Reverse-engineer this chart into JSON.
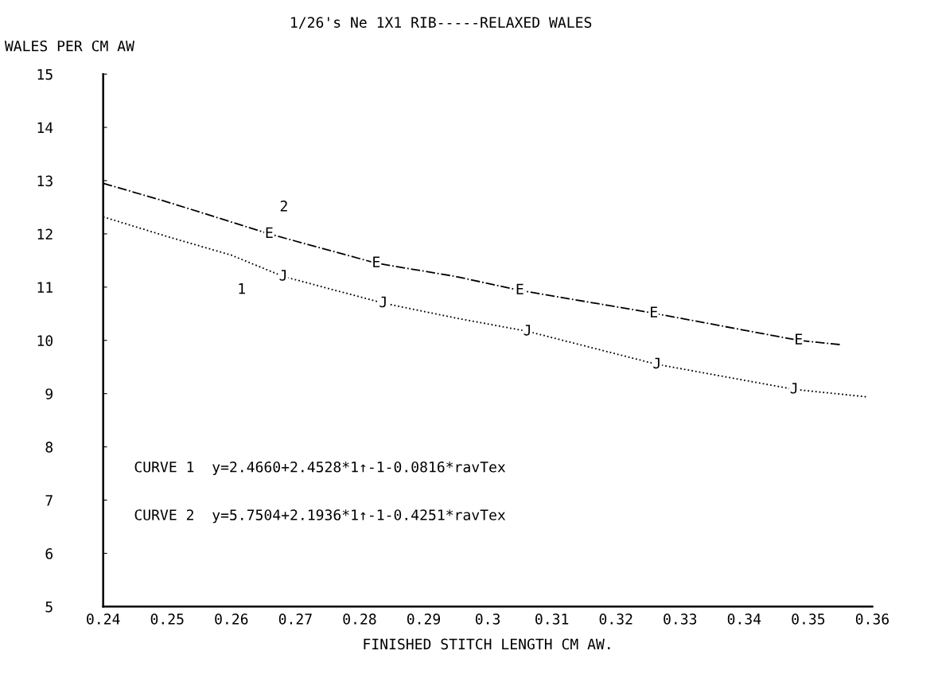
{
  "chart_data": {
    "type": "line",
    "title": "1/26's Ne 1X1 RIB-----RELAXED WALES",
    "xlabel": "FINISHED STITCH LENGTH CM AW.",
    "ylabel": "WALES PER CM AW",
    "series": [
      {
        "color": "#000000",
        "line_style": "dotted",
        "x": [
          0.24,
          0.25,
          0.26,
          0.2681,
          0.2837,
          0.295,
          0.3062,
          0.3264,
          0.3478,
          0.359
        ],
        "values": [
          12.32,
          11.95,
          11.6,
          11.2,
          10.7,
          10.42,
          10.17,
          9.55,
          9.08,
          8.94
        ]
      },
      {
        "color": "#000000",
        "line_style": "dashdot",
        "x": [
          0.24,
          0.25,
          0.2659,
          0.2826,
          0.295,
          0.305,
          0.3259,
          0.3485,
          0.355
        ],
        "values": [
          12.95,
          12.6,
          12.0,
          11.45,
          11.2,
          10.94,
          10.51,
          10.0,
          9.92
        ]
      }
    ],
    "xlim": [
      0.24,
      0.36
    ],
    "ylim": [
      5,
      15
    ],
    "xticks": [
      0.24,
      0.25,
      0.26,
      0.27,
      0.28,
      0.29,
      0.3,
      0.31,
      0.32,
      0.33,
      0.34,
      0.35,
      0.36
    ],
    "yticks": [
      5,
      6,
      7,
      8,
      9,
      10,
      11,
      12,
      13,
      14,
      15
    ],
    "grid": false,
    "annotations": [
      {
        "text": "E",
        "x": 0.2659,
        "y": 12.0
      },
      {
        "text": "E",
        "x": 0.2826,
        "y": 11.45
      },
      {
        "text": "E",
        "x": 0.305,
        "y": 10.94
      },
      {
        "text": "E",
        "x": 0.3259,
        "y": 10.51
      },
      {
        "text": "E",
        "x": 0.3485,
        "y": 10.0
      },
      {
        "text": "J",
        "x": 0.2681,
        "y": 11.2
      },
      {
        "text": "J",
        "x": 0.2837,
        "y": 10.7
      },
      {
        "text": "J",
        "x": 0.3062,
        "y": 10.17
      },
      {
        "text": "J",
        "x": 0.3264,
        "y": 9.55
      },
      {
        "text": "J",
        "x": 0.3478,
        "y": 9.08
      },
      "1",
      "2",
      "CURVE 1  y=2.4660+2.4528*1↑-1-0.0816*ravTex",
      "CURVE 2  y=5.7504+2.1936*1↑-1-0.4251*ravTex"
    ]
  }
}
